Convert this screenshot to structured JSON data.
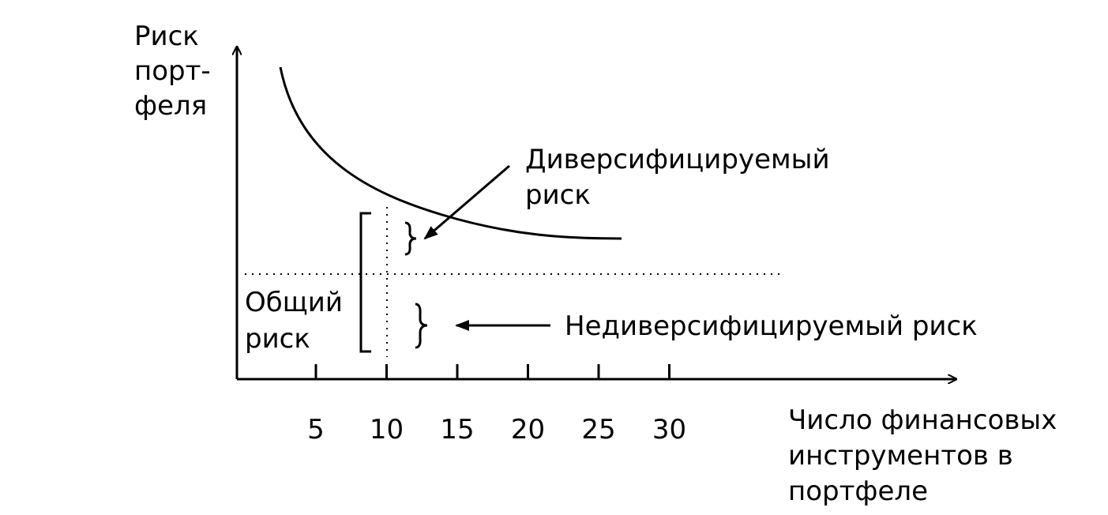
{
  "axes": {
    "y_label": [
      "Риск",
      "порт-",
      "феля"
    ],
    "x_label": [
      "Число финансовых",
      "инструментов в",
      "портфеле"
    ],
    "x_ticks": [
      5,
      10,
      15,
      20,
      25,
      30
    ]
  },
  "annotations": {
    "diversifiable": [
      "Диверсифицируемый",
      "риск"
    ],
    "total": [
      "Общий",
      "риск"
    ],
    "nondiversifiable": "Недиверсифицируемый риск"
  }
}
